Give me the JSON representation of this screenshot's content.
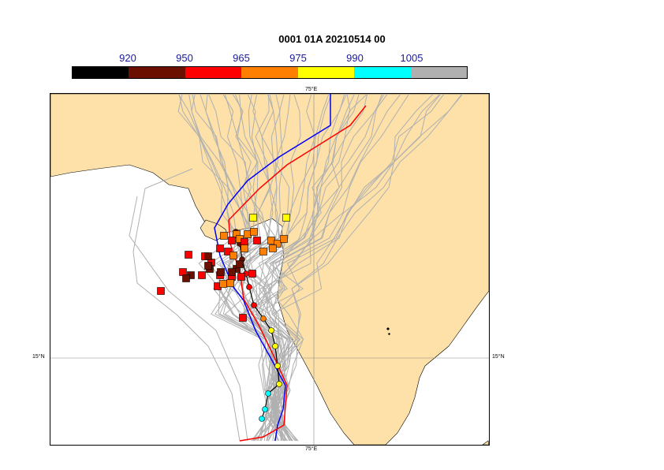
{
  "title": "0001 01A 20210514 00",
  "colorbar": {
    "labels": [
      "920",
      "950",
      "965",
      "975",
      "990",
      "1005"
    ],
    "colors": [
      "#000000",
      "#6b0f00",
      "#ff0000",
      "#ff8000",
      "#ffff00",
      "#00ffff",
      "#b0b0b0"
    ]
  },
  "map": {
    "land_color": "#fde1a9",
    "sea_color": "#ffffff",
    "ensemble_track_color": "#b0b0b0",
    "mean_track_color": "#0000ff",
    "control_track_color": "#ff0000",
    "gridlines": {
      "lon_label": "75°E",
      "lat_label": "15°N"
    }
  }
}
